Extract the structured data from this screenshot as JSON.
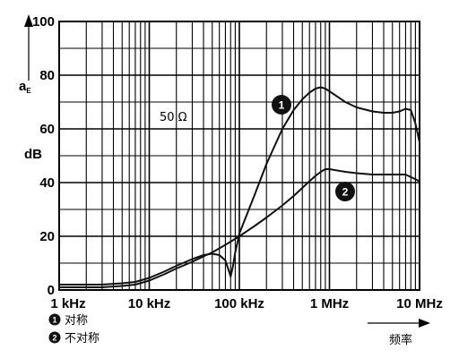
{
  "chart_data": {
    "type": "line",
    "ylabel": "dB",
    "ylabel_symbol": "a",
    "ylabel_subscript": "E",
    "xlabel": "频率",
    "x_scale": "log",
    "xlim": [
      1,
      10000
    ],
    "ylim": [
      0,
      100
    ],
    "y_ticks": [
      0,
      20,
      40,
      60,
      80,
      100
    ],
    "x_ticks": [
      {
        "value": 1,
        "label": "1 kHz"
      },
      {
        "value": 10,
        "label": "10 kHz"
      },
      {
        "value": 100,
        "label": "100 kHz"
      },
      {
        "value": 1000,
        "label": "1 MHz"
      },
      {
        "value": 10000,
        "label": "10 MHz"
      }
    ],
    "grid": true,
    "annotation": "50 Ω",
    "series": [
      {
        "name": "对称",
        "marker": "1",
        "x": [
          1,
          2,
          3,
          5,
          7,
          10,
          15,
          20,
          30,
          40,
          50,
          60,
          70,
          75,
          80,
          85,
          90,
          100,
          150,
          200,
          300,
          400,
          500,
          600,
          700,
          800,
          900,
          1000,
          1500,
          2000,
          3000,
          4000,
          5000,
          6000,
          7000,
          8000,
          9000,
          10000
        ],
        "y": [
          2,
          2,
          2,
          2.5,
          3,
          4.5,
          7,
          9,
          11.5,
          13,
          13.5,
          13,
          11,
          8,
          5,
          9,
          14,
          21,
          36,
          47,
          60,
          67,
          71,
          73.5,
          75,
          75.5,
          75,
          74,
          70,
          68,
          66.5,
          66,
          66,
          66.5,
          67.5,
          67,
          62,
          55
        ]
      },
      {
        "name": "不对称",
        "marker": "2",
        "x": [
          1,
          2,
          3,
          5,
          7,
          10,
          15,
          20,
          30,
          40,
          50,
          60,
          80,
          100,
          150,
          200,
          300,
          400,
          500,
          600,
          700,
          800,
          900,
          1000,
          1500,
          2000,
          3000,
          5000,
          7000,
          10000
        ],
        "y": [
          1,
          1,
          1,
          1.5,
          2,
          3.5,
          6,
          8,
          10.5,
          12.5,
          14,
          15.5,
          18,
          20,
          24,
          27,
          31.5,
          35,
          38,
          40.5,
          42.5,
          44,
          45,
          45,
          44,
          43.5,
          43,
          43,
          43,
          40.5
        ]
      }
    ],
    "legend": [
      {
        "marker": "1",
        "label": "对称"
      },
      {
        "marker": "2",
        "label": "不对称"
      }
    ]
  }
}
